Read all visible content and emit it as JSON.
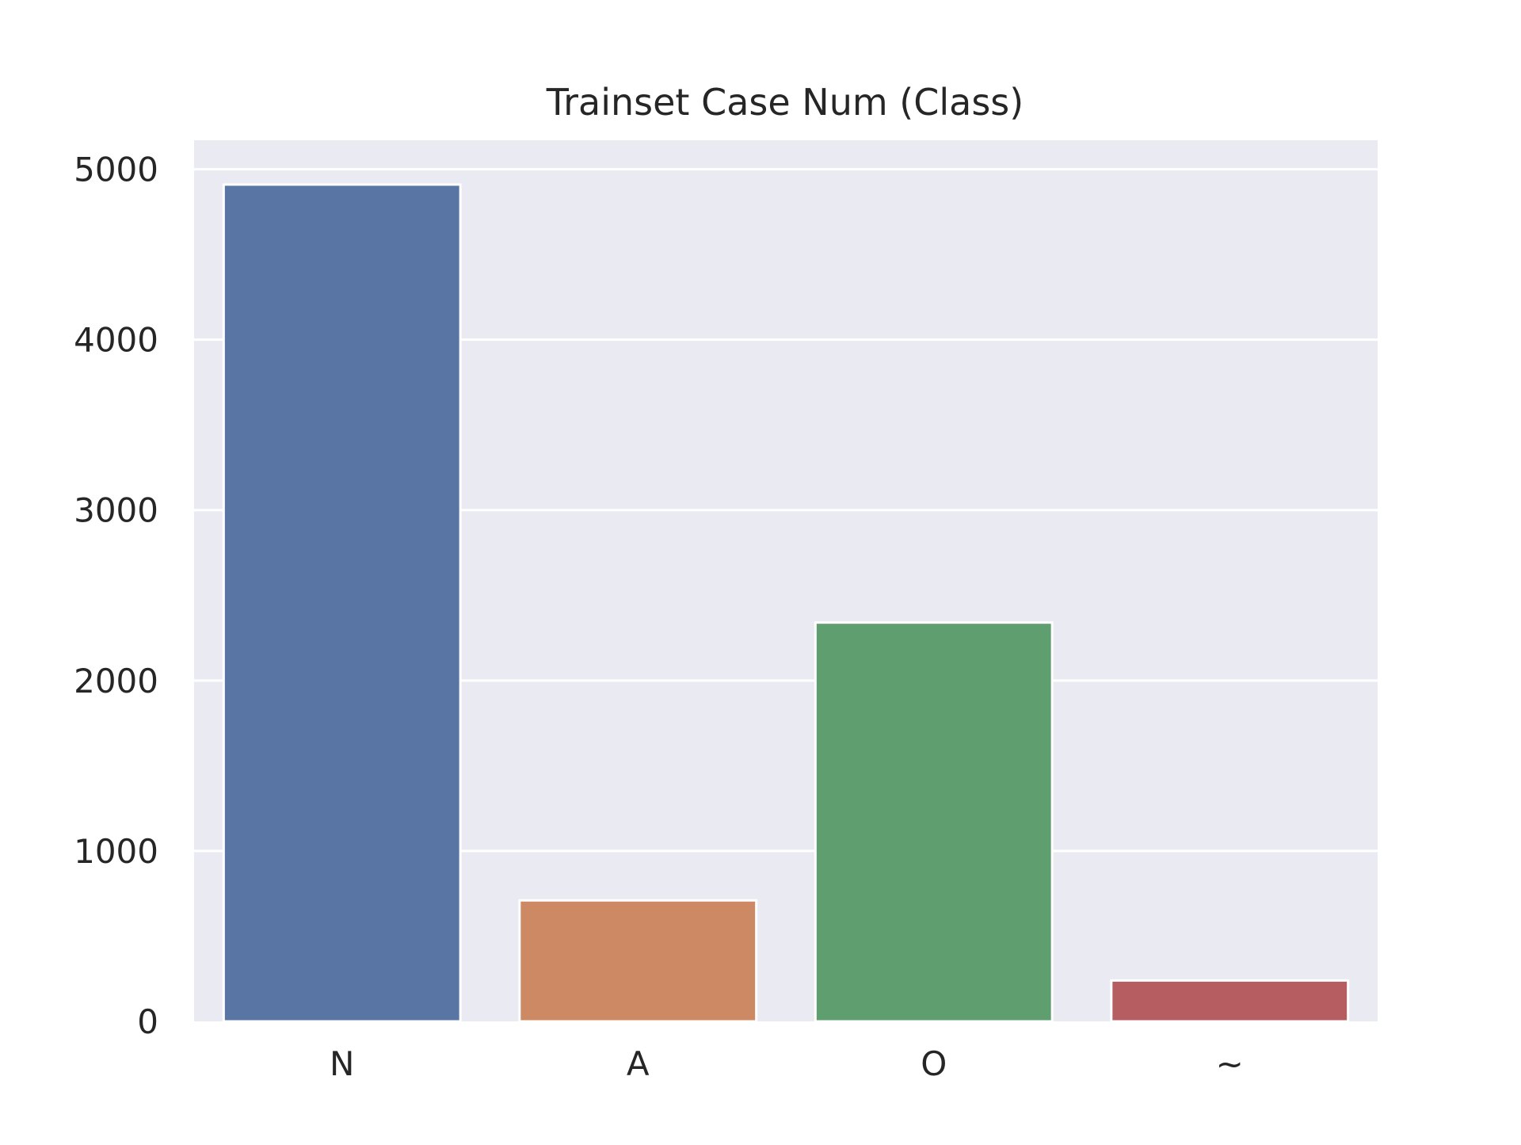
{
  "chart_data": {
    "type": "bar",
    "title": "Trainset Case Num (Class)",
    "xlabel": "",
    "ylabel": "",
    "categories": [
      "N",
      "A",
      "O",
      "~"
    ],
    "values": [
      4910,
      710,
      2340,
      240
    ],
    "ylim": [
      0,
      5170
    ],
    "yticks": [
      0,
      1000,
      2000,
      3000,
      4000,
      5000
    ],
    "grid": true,
    "legend": "none",
    "colors": [
      "#5975a4",
      "#cc8963",
      "#5f9e6e",
      "#b55d60"
    ],
    "background_color": "#eaeaf2",
    "grid_color": "#ffffff"
  }
}
